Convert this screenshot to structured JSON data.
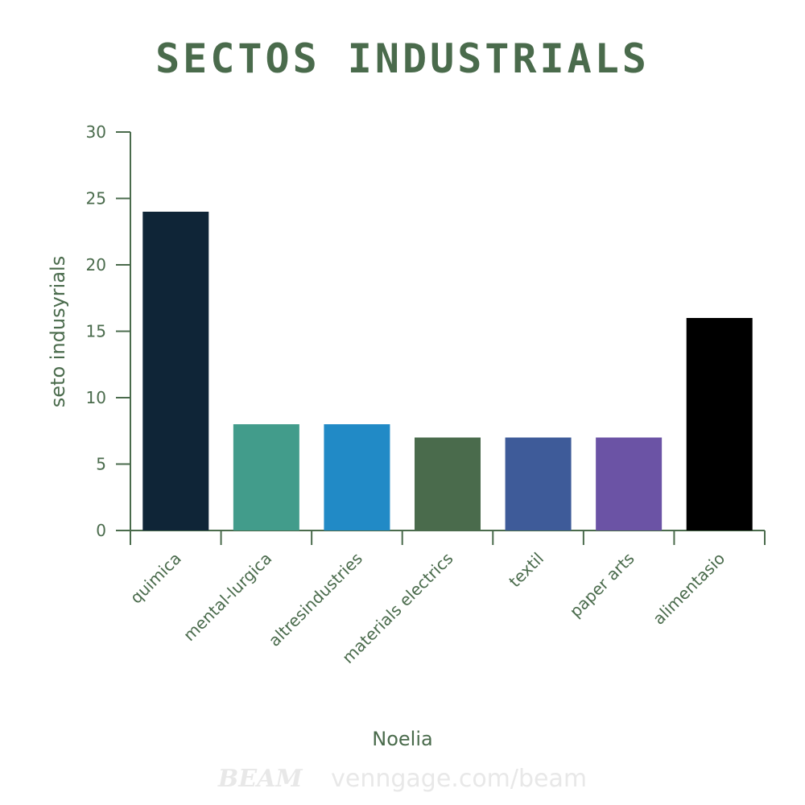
{
  "chart_data": {
    "type": "bar",
    "title": "SECTOS INDUSTRIALS",
    "xlabel": "Noelia",
    "ylabel": "seto indusyrials",
    "categories": [
      "quimica",
      "mental-lurgica",
      "altresindustries",
      "materials electrics",
      "textil",
      "paper arts",
      "alimentasio"
    ],
    "values": [
      24,
      8,
      8,
      7,
      7,
      7,
      16
    ],
    "colors": [
      "#0f2537",
      "#429c8b",
      "#218ac6",
      "#4a6b4c",
      "#3e5b99",
      "#6b53a5",
      "#000000"
    ],
    "ylim": [
      0,
      30
    ],
    "yticks": [
      0,
      5,
      10,
      15,
      20,
      25,
      30
    ],
    "grid": false,
    "legend": "none",
    "axis_color": "#4a6b4c"
  },
  "watermark": {
    "logo": "BEAM",
    "url": "venngage.com/beam"
  }
}
